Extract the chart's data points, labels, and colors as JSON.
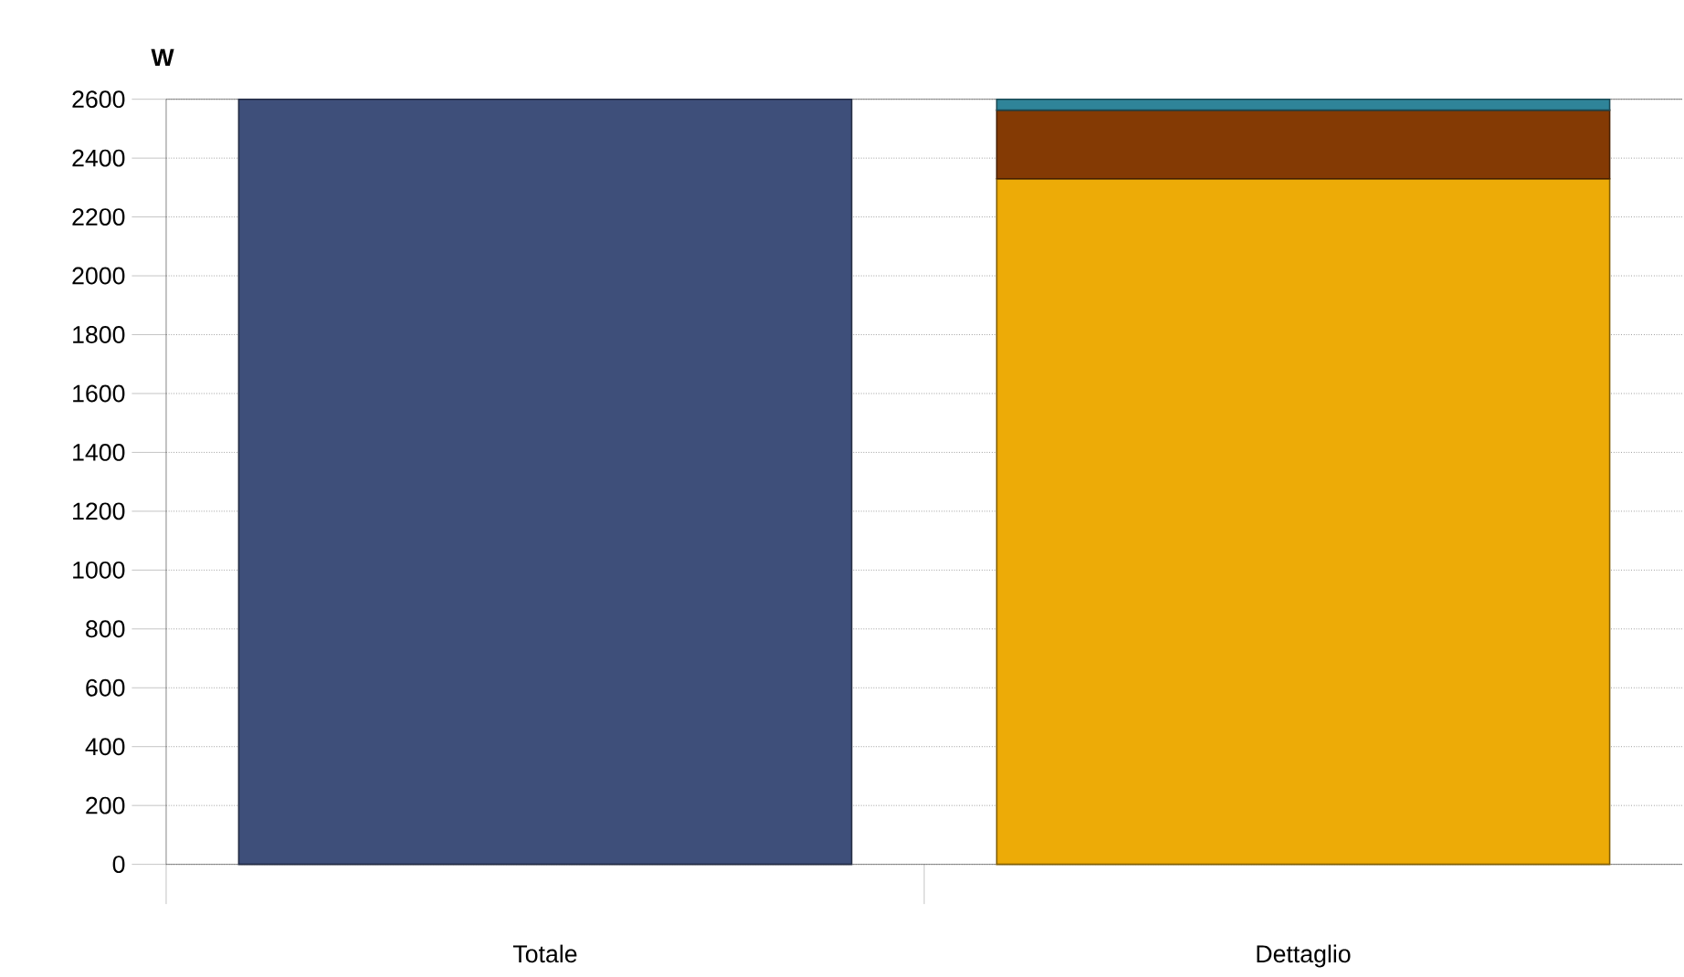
{
  "chart_data": {
    "type": "bar",
    "stacked": true,
    "ylabel": "W",
    "categories": [
      "Totale",
      "Dettaglio"
    ],
    "series": [
      {
        "color": "#3e4f7a",
        "values": [
          2600,
          null
        ]
      },
      {
        "color": "#edab07",
        "values": [
          null,
          2330
        ]
      },
      {
        "color": "#843a04",
        "values": [
          null,
          233
        ]
      },
      {
        "color": "#2f8499",
        "values": [
          null,
          37
        ]
      }
    ],
    "ylim": [
      0,
      2600
    ],
    "yticks": [
      0,
      200,
      400,
      600,
      800,
      1000,
      1200,
      1400,
      1600,
      1800,
      2000,
      2200,
      2400,
      2600
    ],
    "grid": "y"
  }
}
